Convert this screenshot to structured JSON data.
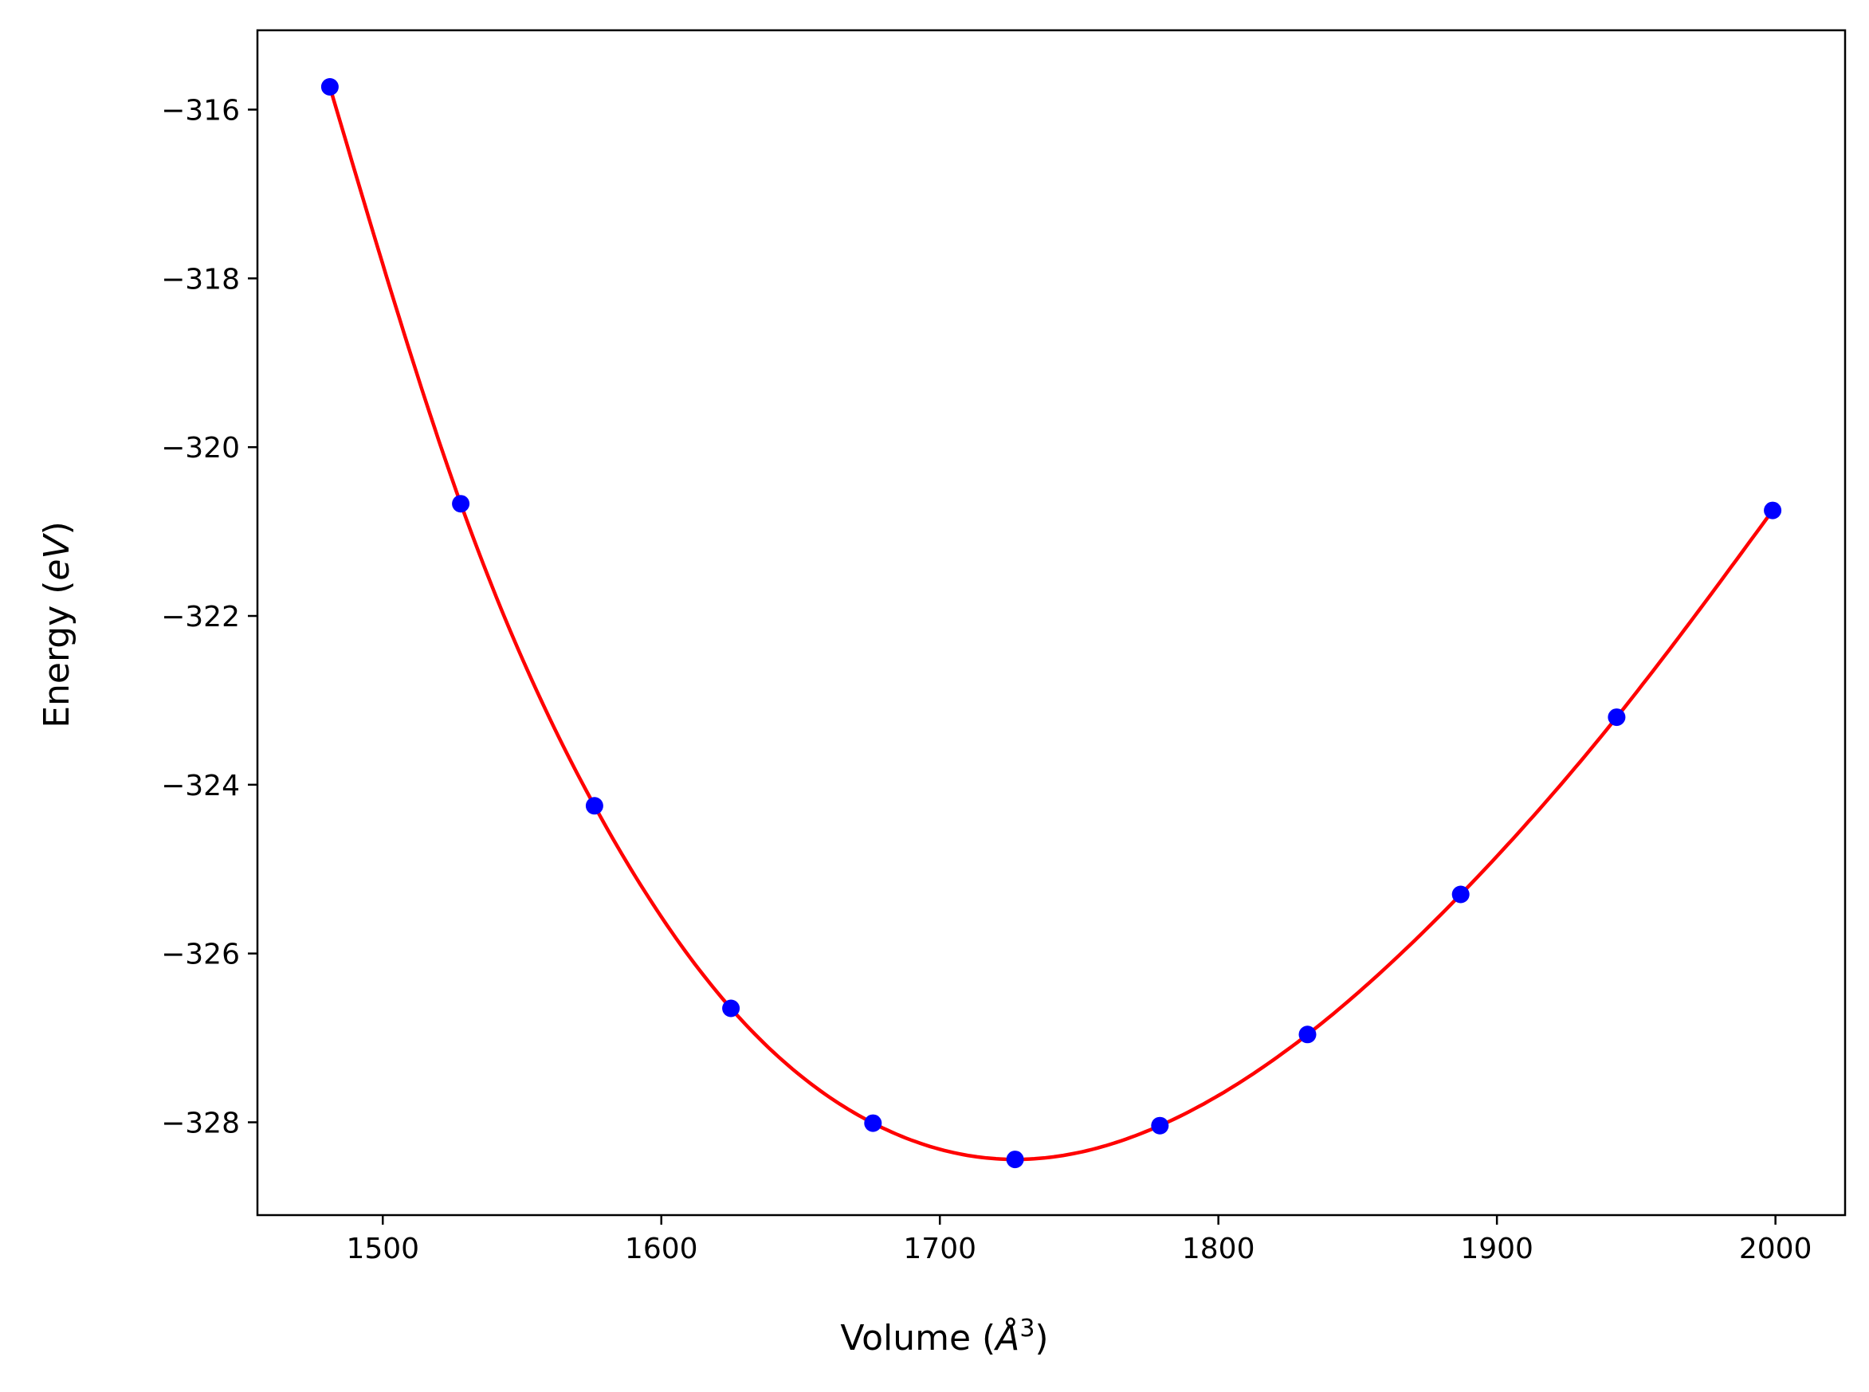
{
  "chart_data": {
    "type": "scatter",
    "title": "",
    "xlabel": "Volume (Å³)",
    "ylabel": "Energy (eV)",
    "xlabel_parts": {
      "before": "Volume (",
      "italic": "Å",
      "sup": "3",
      "after": ")"
    },
    "ylabel_parts": {
      "before": "Energy (",
      "italic": "eV",
      "after": ")"
    },
    "xlim": [
      1455,
      2025
    ],
    "ylim": [
      -329.1,
      -315.06
    ],
    "xticks": [
      1500,
      1600,
      1700,
      1800,
      1900,
      2000
    ],
    "yticks": [
      -316,
      -318,
      -320,
      -322,
      -324,
      -326,
      -328
    ],
    "xtick_labels": [
      "1500",
      "1600",
      "1700",
      "1800",
      "1900",
      "2000"
    ],
    "ytick_labels": [
      "−316",
      "−318",
      "−320",
      "−322",
      "−324",
      "−326",
      "−328"
    ],
    "grid": false,
    "series": [
      {
        "kind": "points",
        "color": "#0000ff",
        "x": [
          1481,
          1528,
          1576,
          1625,
          1676,
          1727,
          1779,
          1832,
          1887,
          1943,
          1999
        ],
        "y": [
          -315.73,
          -320.67,
          -324.25,
          -326.65,
          -328.01,
          -328.44,
          -328.04,
          -326.96,
          -325.3,
          -323.2,
          -320.75
        ]
      },
      {
        "kind": "fit-curve",
        "color": "#ff0000",
        "x": [
          1481,
          1528,
          1576,
          1625,
          1676,
          1727,
          1779,
          1832,
          1887,
          1943,
          1999
        ],
        "y": [
          -315.73,
          -320.67,
          -324.25,
          -326.65,
          -328.01,
          -328.44,
          -328.04,
          -326.96,
          -325.3,
          -323.2,
          -320.75
        ]
      }
    ]
  }
}
